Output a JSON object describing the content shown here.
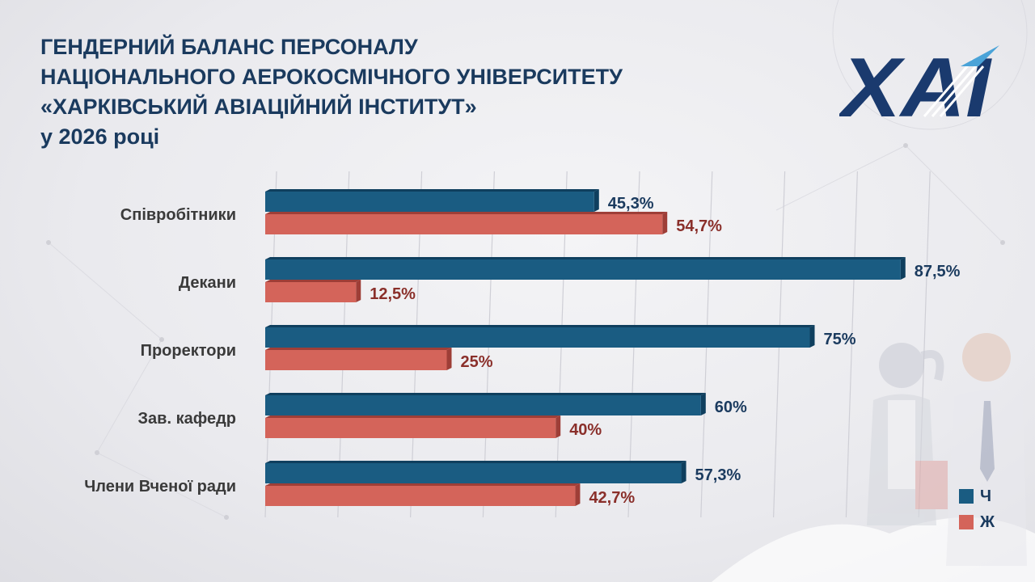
{
  "title": {
    "line1": "ГЕНДЕРНИЙ БАЛАНС ПЕРСОНАЛУ",
    "line2": "НАЦІОНАЛЬНОГО АЕРОКОСМІЧНОГО УНІВЕРСИТЕТУ",
    "line3": "«ХАРКІВСЬКИЙ АВІАЦІЙНИЙ ІНСТИТУТ»",
    "line4": "у 2026 році"
  },
  "logo": {
    "text": "ХАІ"
  },
  "colors": {
    "male": "#1a5c82",
    "male_dark": "#0f3f5e",
    "female": "#d4645a",
    "female_dark": "#9e3e37",
    "male_label": "#1a3a5e",
    "female_label": "#8a2f2a",
    "title": "#1a3a5e"
  },
  "legend": {
    "male_label": "Ч",
    "female_label": "Ж"
  },
  "chart_data": {
    "type": "bar",
    "orientation": "horizontal",
    "categories": [
      "Співробітники",
      "Декани",
      "Проректори",
      "Зав. кафедр",
      "Члени Вченої ради"
    ],
    "series": [
      {
        "name": "Ч",
        "values": [
          45.3,
          87.5,
          75,
          60,
          57.3
        ],
        "labels": [
          "45,3%",
          "87,5%",
          "75%",
          "60%",
          "57,3%"
        ]
      },
      {
        "name": "Ж",
        "values": [
          54.7,
          12.5,
          25,
          40,
          42.7
        ],
        "labels": [
          "54,7%",
          "12,5%",
          "25%",
          "40%",
          "42,7%"
        ]
      }
    ],
    "xlim": [
      0,
      90
    ],
    "grid": true,
    "legend_position": "bottom-right"
  }
}
